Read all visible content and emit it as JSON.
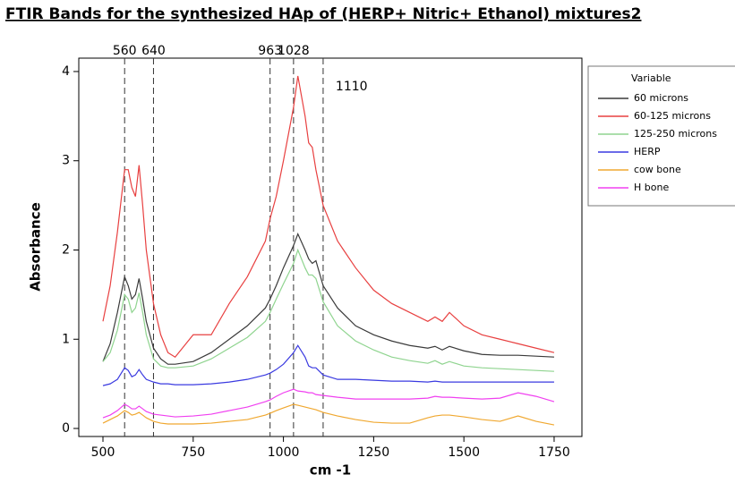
{
  "chart_data": {
    "type": "line",
    "title": "FTIR Bands for the synthesized HAp of (HERP+ Nitric+ Ethanol) mixtures2",
    "x_label": "cm -1",
    "y_label": "Absorbance",
    "legend_title": "Variable",
    "legend": "right",
    "x": [
      500,
      520,
      540,
      560,
      570,
      580,
      590,
      600,
      610,
      620,
      640,
      660,
      680,
      700,
      750,
      800,
      850,
      900,
      950,
      963,
      980,
      1000,
      1028,
      1040,
      1060,
      1070,
      1080,
      1090,
      1110,
      1150,
      1200,
      1250,
      1300,
      1350,
      1400,
      1420,
      1440,
      1460,
      1500,
      1550,
      1600,
      1650,
      1700,
      1750
    ],
    "series": [
      {
        "name": "60 microns",
        "color": "#3a3a3a",
        "values": [
          0.75,
          0.95,
          1.3,
          1.7,
          1.6,
          1.45,
          1.5,
          1.68,
          1.45,
          1.2,
          0.9,
          0.78,
          0.72,
          0.72,
          0.75,
          0.85,
          1.0,
          1.15,
          1.35,
          1.45,
          1.6,
          1.8,
          2.05,
          2.18,
          2.0,
          1.9,
          1.85,
          1.88,
          1.6,
          1.35,
          1.15,
          1.05,
          0.98,
          0.93,
          0.9,
          0.92,
          0.88,
          0.92,
          0.87,
          0.83,
          0.82,
          0.82,
          0.81,
          0.8
        ]
      },
      {
        "name": "60-125 microns",
        "color": "#e84040",
        "values": [
          1.2,
          1.6,
          2.2,
          2.9,
          2.9,
          2.7,
          2.6,
          2.95,
          2.5,
          2.0,
          1.4,
          1.05,
          0.85,
          0.8,
          1.05,
          1.05,
          1.4,
          1.7,
          2.1,
          2.35,
          2.6,
          3.0,
          3.6,
          3.95,
          3.5,
          3.2,
          3.15,
          2.9,
          2.5,
          2.1,
          1.8,
          1.55,
          1.4,
          1.3,
          1.2,
          1.25,
          1.2,
          1.3,
          1.15,
          1.05,
          1.0,
          0.95,
          0.9,
          0.85
        ]
      },
      {
        "name": "125-250 microns",
        "color": "#8fd48f",
        "values": [
          0.75,
          0.85,
          1.1,
          1.5,
          1.45,
          1.3,
          1.35,
          1.52,
          1.3,
          1.05,
          0.78,
          0.7,
          0.68,
          0.68,
          0.7,
          0.78,
          0.9,
          1.02,
          1.2,
          1.3,
          1.45,
          1.62,
          1.85,
          2.0,
          1.8,
          1.72,
          1.72,
          1.68,
          1.42,
          1.15,
          0.98,
          0.88,
          0.8,
          0.76,
          0.73,
          0.76,
          0.72,
          0.75,
          0.7,
          0.68,
          0.67,
          0.66,
          0.65,
          0.64
        ]
      },
      {
        "name": "HERP",
        "color": "#3a3ae0",
        "values": [
          0.48,
          0.5,
          0.55,
          0.68,
          0.65,
          0.58,
          0.6,
          0.66,
          0.6,
          0.55,
          0.52,
          0.5,
          0.5,
          0.49,
          0.49,
          0.5,
          0.52,
          0.55,
          0.6,
          0.62,
          0.66,
          0.72,
          0.85,
          0.93,
          0.8,
          0.7,
          0.68,
          0.68,
          0.6,
          0.55,
          0.55,
          0.54,
          0.53,
          0.53,
          0.52,
          0.53,
          0.52,
          0.52,
          0.52,
          0.52,
          0.52,
          0.52,
          0.52,
          0.52
        ]
      },
      {
        "name": "cow bone",
        "color": "#f0a830",
        "values": [
          0.06,
          0.1,
          0.14,
          0.2,
          0.18,
          0.15,
          0.16,
          0.18,
          0.15,
          0.12,
          0.08,
          0.06,
          0.05,
          0.05,
          0.05,
          0.06,
          0.08,
          0.1,
          0.15,
          0.17,
          0.2,
          0.23,
          0.27,
          0.26,
          0.24,
          0.23,
          0.22,
          0.21,
          0.18,
          0.14,
          0.1,
          0.07,
          0.06,
          0.06,
          0.12,
          0.14,
          0.15,
          0.15,
          0.13,
          0.1,
          0.08,
          0.14,
          0.08,
          0.04
        ]
      },
      {
        "name": "H bone",
        "color": "#f040f0",
        "values": [
          0.12,
          0.15,
          0.2,
          0.27,
          0.25,
          0.22,
          0.22,
          0.25,
          0.22,
          0.19,
          0.16,
          0.15,
          0.14,
          0.13,
          0.14,
          0.16,
          0.2,
          0.24,
          0.3,
          0.32,
          0.36,
          0.4,
          0.44,
          0.42,
          0.41,
          0.4,
          0.4,
          0.38,
          0.37,
          0.35,
          0.33,
          0.33,
          0.33,
          0.33,
          0.34,
          0.36,
          0.35,
          0.35,
          0.34,
          0.33,
          0.34,
          0.4,
          0.36,
          0.3
        ]
      }
    ],
    "vlines": [
      560,
      640,
      963,
      1028,
      1110
    ],
    "xlim": [
      433,
      1827
    ],
    "xticks": [
      500,
      750,
      1000,
      1250,
      1500,
      1750
    ],
    "ylim": [
      -0.09,
      4.15
    ],
    "yticks": [
      0,
      1,
      2,
      3,
      4
    ]
  }
}
